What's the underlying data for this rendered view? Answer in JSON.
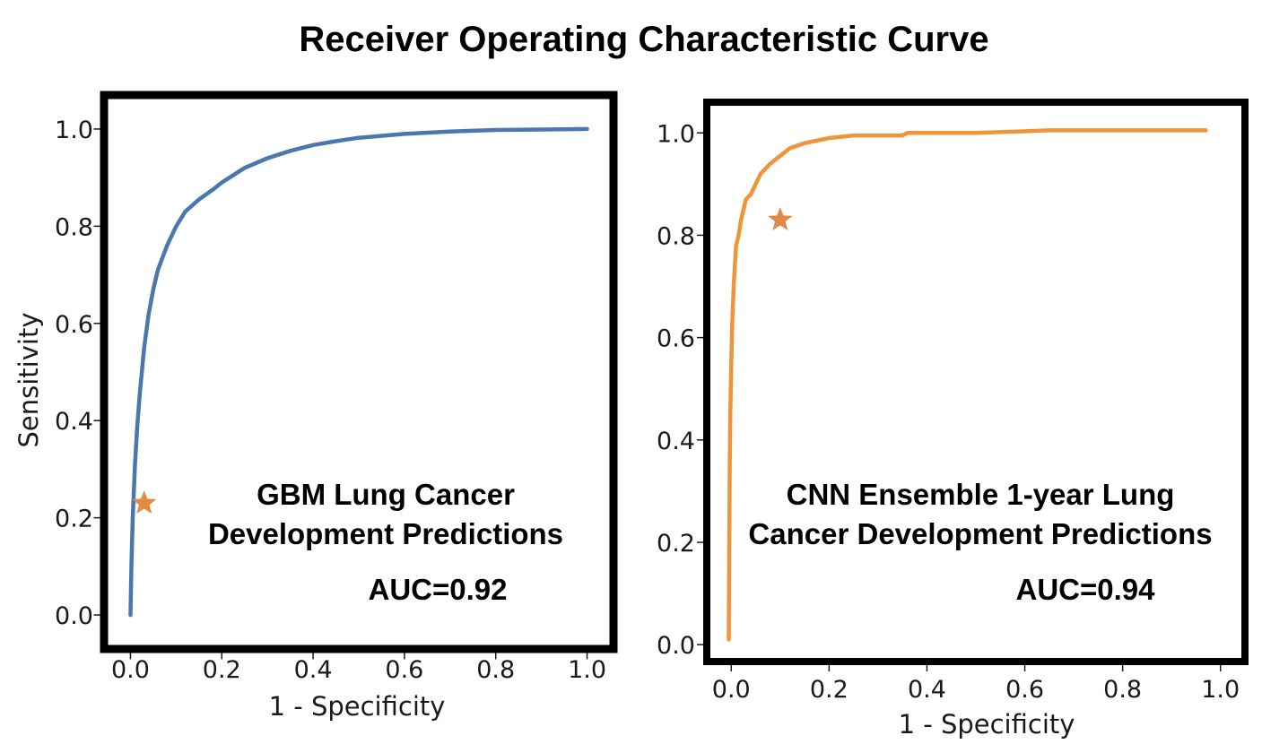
{
  "title": "Receiver Operating Characteristic Curve",
  "chart_data": [
    {
      "type": "line",
      "xlabel": "1 - Specificity",
      "ylabel": "Sensitivity",
      "xlim": [
        -0.05,
        1.05
      ],
      "ylim": [
        -0.07,
        1.07
      ],
      "xticks": [
        "0.0",
        "0.2",
        "0.4",
        "0.6",
        "0.8",
        "1.0"
      ],
      "yticks": [
        "0.0",
        "0.2",
        "0.4",
        "0.6",
        "0.8",
        "1.0"
      ],
      "annotation_lines": [
        "GBM Lung Cancer",
        "Development Predictions"
      ],
      "auc_label": "AUC=0.92",
      "curve_color": "#4a78ac",
      "marker_color": "#e08a45",
      "series": [
        {
          "x": [
            0.0,
            0.002,
            0.005,
            0.01,
            0.015,
            0.02,
            0.03,
            0.04,
            0.05,
            0.06,
            0.08,
            0.1,
            0.12,
            0.15,
            0.18,
            0.2,
            0.25,
            0.3,
            0.35,
            0.4,
            0.45,
            0.5,
            0.6,
            0.7,
            0.8,
            0.9,
            1.0
          ],
          "y": [
            0.0,
            0.1,
            0.2,
            0.31,
            0.39,
            0.45,
            0.55,
            0.62,
            0.67,
            0.71,
            0.76,
            0.8,
            0.83,
            0.855,
            0.875,
            0.89,
            0.92,
            0.94,
            0.955,
            0.967,
            0.975,
            0.982,
            0.99,
            0.995,
            0.998,
            0.999,
            1.0
          ]
        }
      ],
      "marker_point": {
        "x": 0.03,
        "y": 0.23,
        "shape": "star"
      }
    },
    {
      "type": "line",
      "xlabel": "1 - Specificity",
      "ylabel": "",
      "xlim": [
        -0.05,
        1.05
      ],
      "ylim": [
        -0.04,
        1.06
      ],
      "xticks": [
        "0.0",
        "0.2",
        "0.4",
        "0.6",
        "0.8",
        "1.0"
      ],
      "yticks": [
        "0.0",
        "0.2",
        "0.4",
        "0.6",
        "0.8",
        "1.0"
      ],
      "annotation_lines": [
        "CNN Ensemble 1-year Lung",
        "Cancer Development Predictions"
      ],
      "auc_label": "AUC=0.94",
      "curve_color": "#ef9438",
      "marker_color": "#e08a45",
      "series": [
        {
          "x": [
            -0.005,
            -0.004,
            -0.003,
            -0.002,
            0.0,
            0.002,
            0.005,
            0.008,
            0.01,
            0.015,
            0.02,
            0.025,
            0.03,
            0.04,
            0.05,
            0.06,
            0.07,
            0.08,
            0.1,
            0.12,
            0.15,
            0.2,
            0.25,
            0.35,
            0.36,
            0.5,
            0.65,
            0.8,
            0.97
          ],
          "y": [
            0.01,
            0.2,
            0.35,
            0.45,
            0.55,
            0.63,
            0.7,
            0.75,
            0.78,
            0.8,
            0.83,
            0.85,
            0.87,
            0.88,
            0.9,
            0.92,
            0.93,
            0.94,
            0.955,
            0.97,
            0.98,
            0.99,
            0.995,
            0.995,
            1.0,
            1.0,
            1.005,
            1.005,
            1.005
          ]
        }
      ],
      "marker_point": {
        "x": 0.1,
        "y": 0.83,
        "shape": "star"
      }
    }
  ]
}
